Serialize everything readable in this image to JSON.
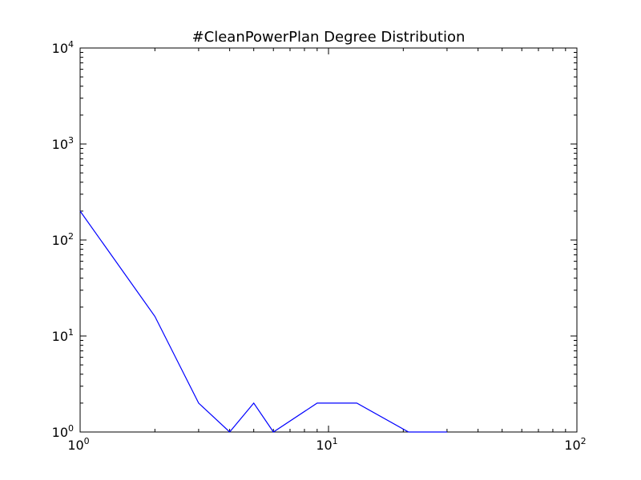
{
  "chart_data": {
    "type": "line",
    "title": "#CleanPowerPlan Degree Distribution",
    "xlabel": "",
    "ylabel": "",
    "x_scale": "log",
    "y_scale": "log",
    "xlim": [
      1,
      100
    ],
    "ylim": [
      1,
      10000
    ],
    "grid": false,
    "x_ticks": [
      {
        "value": 1,
        "base": "10",
        "exp": "0"
      },
      {
        "value": 10,
        "base": "10",
        "exp": "1"
      },
      {
        "value": 100,
        "base": "10",
        "exp": "2"
      }
    ],
    "y_ticks": [
      {
        "value": 1,
        "base": "10",
        "exp": "0"
      },
      {
        "value": 10,
        "base": "10",
        "exp": "1"
      },
      {
        "value": 100,
        "base": "10",
        "exp": "2"
      },
      {
        "value": 1000,
        "base": "10",
        "exp": "3"
      },
      {
        "value": 10000,
        "base": "10",
        "exp": "4"
      }
    ],
    "series": [
      {
        "color": "#0000ff",
        "x": [
          1,
          2,
          3,
          4,
          5,
          6,
          9,
          13,
          21,
          30
        ],
        "y": [
          200,
          16,
          2,
          1,
          2,
          1,
          2,
          2,
          1,
          1
        ]
      }
    ]
  }
}
